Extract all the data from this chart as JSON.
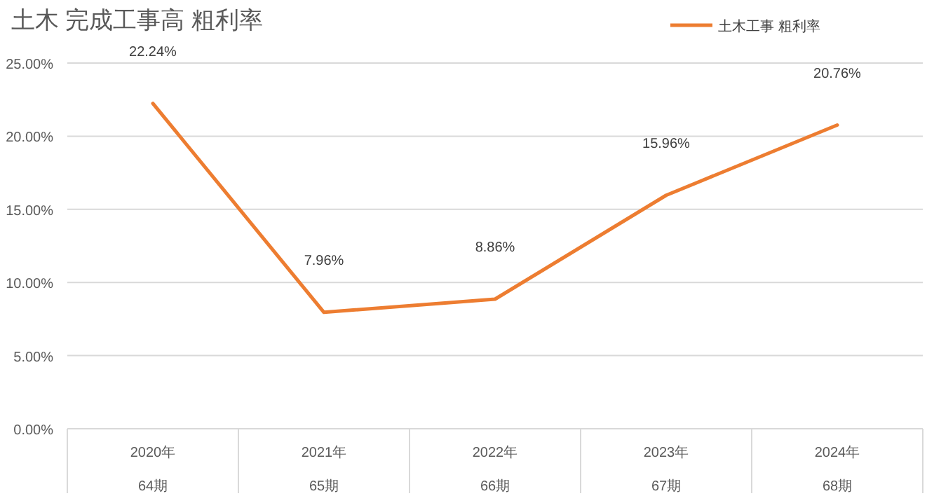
{
  "chart_data": {
    "type": "line",
    "title": "土木  完成工事高  粗利率",
    "categories": [
      "2020年\n64期",
      "2021年\n65期",
      "2022年\n66期",
      "2023年\n67期",
      "2024年\n68期"
    ],
    "series": [
      {
        "name": "土木工事  粗利率",
        "color": "#ed7d31",
        "values": [
          22.24,
          7.96,
          8.86,
          15.96,
          20.76
        ],
        "value_labels": [
          "22.24%",
          "7.96%",
          "8.86%",
          "15.96%",
          "20.76%"
        ]
      }
    ],
    "ylim": [
      0,
      25
    ],
    "yticks": [
      {
        "value": 0,
        "label": "0.00%"
      },
      {
        "value": 5,
        "label": "5.00%"
      },
      {
        "value": 10,
        "label": "10.00%"
      },
      {
        "value": 15,
        "label": "15.00%"
      },
      {
        "value": 20,
        "label": "20.00%"
      },
      {
        "value": 25,
        "label": "25.00%"
      }
    ],
    "grid": "y",
    "legend": "top right",
    "marker": "none",
    "line_style": "solid"
  }
}
